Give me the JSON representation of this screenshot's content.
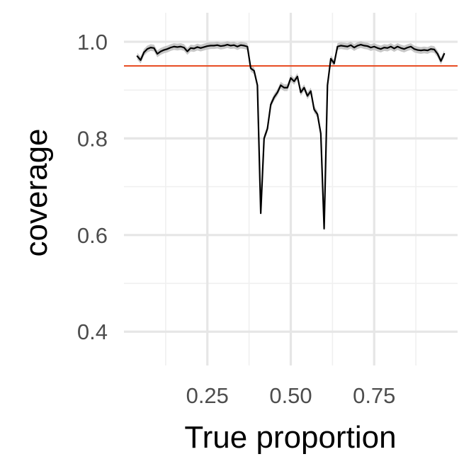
{
  "chart_data": {
    "type": "line",
    "title": "",
    "xlabel": "True proportion",
    "ylabel": "coverage",
    "xlim": [
      0.0,
      1.0
    ],
    "ylim": [
      0.33,
      1.06
    ],
    "x_ticks": [
      0.25,
      0.5,
      0.75
    ],
    "x_tick_labels": [
      "0.25",
      "0.50",
      "0.75"
    ],
    "x_minor_ticks": [
      0.125,
      0.375,
      0.625,
      0.875
    ],
    "y_ticks": [
      0.4,
      0.6,
      0.8,
      1.0
    ],
    "y_tick_labels": [
      "0.4",
      "0.6",
      "0.8",
      "1.0"
    ],
    "y_minor_ticks": [
      0.5,
      0.7,
      0.9
    ],
    "grid": true,
    "legend": "none",
    "reference_line": {
      "y": 0.95,
      "color": "#e8522a"
    },
    "series": [
      {
        "color": "#000000",
        "band_color": "#bdbdbd",
        "band_halfwidth": 0.007,
        "x": [
          0.04,
          0.05,
          0.06,
          0.07,
          0.08,
          0.09,
          0.1,
          0.11,
          0.12,
          0.13,
          0.14,
          0.15,
          0.16,
          0.17,
          0.18,
          0.19,
          0.2,
          0.21,
          0.22,
          0.23,
          0.24,
          0.25,
          0.26,
          0.27,
          0.28,
          0.29,
          0.3,
          0.31,
          0.32,
          0.33,
          0.34,
          0.35,
          0.36,
          0.37,
          0.38,
          0.39,
          0.4,
          0.41,
          0.42,
          0.43,
          0.44,
          0.45,
          0.46,
          0.47,
          0.48,
          0.49,
          0.5,
          0.51,
          0.52,
          0.53,
          0.54,
          0.55,
          0.56,
          0.57,
          0.58,
          0.59,
          0.6,
          0.61,
          0.62,
          0.63,
          0.64,
          0.65,
          0.66,
          0.67,
          0.68,
          0.69,
          0.7,
          0.71,
          0.72,
          0.73,
          0.74,
          0.75,
          0.76,
          0.77,
          0.78,
          0.79,
          0.8,
          0.81,
          0.82,
          0.83,
          0.84,
          0.85,
          0.86,
          0.87,
          0.88,
          0.89,
          0.9,
          0.91,
          0.92,
          0.93,
          0.94,
          0.95,
          0.96
        ],
        "values": [
          0.97,
          0.962,
          0.978,
          0.985,
          0.988,
          0.987,
          0.975,
          0.98,
          0.983,
          0.985,
          0.988,
          0.99,
          0.989,
          0.99,
          0.988,
          0.98,
          0.987,
          0.986,
          0.989,
          0.987,
          0.989,
          0.991,
          0.992,
          0.992,
          0.993,
          0.991,
          0.992,
          0.994,
          0.992,
          0.993,
          0.99,
          0.993,
          0.992,
          0.99,
          0.945,
          0.94,
          0.91,
          0.645,
          0.8,
          0.82,
          0.87,
          0.885,
          0.895,
          0.91,
          0.905,
          0.905,
          0.925,
          0.918,
          0.928,
          0.895,
          0.905,
          0.888,
          0.898,
          0.86,
          0.85,
          0.81,
          0.613,
          0.91,
          0.965,
          0.955,
          0.99,
          0.992,
          0.991,
          0.99,
          0.993,
          0.988,
          0.992,
          0.994,
          0.992,
          0.991,
          0.988,
          0.99,
          0.987,
          0.985,
          0.988,
          0.987,
          0.99,
          0.986,
          0.99,
          0.987,
          0.985,
          0.988,
          0.99,
          0.985,
          0.983,
          0.982,
          0.983,
          0.982,
          0.985,
          0.984,
          0.975,
          0.96,
          0.975
        ]
      }
    ]
  }
}
